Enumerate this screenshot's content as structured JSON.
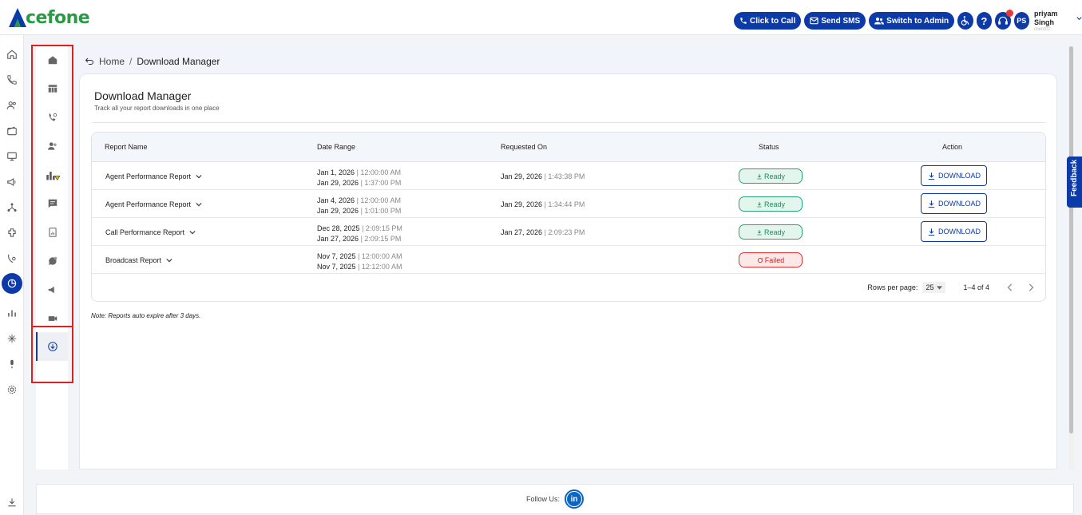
{
  "app": {
    "logo_text": "cefone",
    "brand_color": "#0c3aa8",
    "logo_color": "#2a9a45"
  },
  "topbar": {
    "click_to_call": "Click to Call",
    "send_sms": "Send SMS",
    "switch_admin": "Switch to Admin",
    "help": "?",
    "user_initials": "PS",
    "user_name": "priyam Singh",
    "user_sub": "client02"
  },
  "breadcrumb": {
    "home": "Home",
    "separator": "/",
    "current": "Download Manager"
  },
  "page": {
    "title": "Download Manager",
    "subtitle": "Track all your report downloads in one place",
    "note": "Note: Reports auto expire after 3 days."
  },
  "table": {
    "headers": [
      "Report Name",
      "Date Range",
      "Requested On",
      "Status",
      "Action"
    ],
    "rows": [
      {
        "name": "Agent Performance Report",
        "from_date": "Jan 1, 2026",
        "from_time": "| 12:00:00 AM",
        "to_date": "Jan 29, 2026",
        "to_time": "| 1:37:00 PM",
        "req_date": "Jan 29, 2026",
        "req_time": "| 1:43:38 PM",
        "status": "Ready",
        "action": "DOWNLOAD"
      },
      {
        "name": "Agent Performance Report",
        "from_date": "Jan 4, 2026",
        "from_time": "| 12:00:00 AM",
        "to_date": "Jan 29, 2026",
        "to_time": "| 1:01:00 PM",
        "req_date": "Jan 29, 2026",
        "req_time": "| 1:34:44 PM",
        "status": "Ready",
        "action": "DOWNLOAD"
      },
      {
        "name": "Call Performance Report",
        "from_date": "Dec 28, 2025",
        "from_time": "| 2:09:15 PM",
        "to_date": "Jan 27, 2026",
        "to_time": "| 2:09:15 PM",
        "req_date": "Jan 27, 2026",
        "req_time": "| 2:09:23 PM",
        "status": "Ready",
        "action": "DOWNLOAD"
      },
      {
        "name": "Broadcast Report",
        "from_date": "Nov 7, 2025",
        "from_time": "| 12:00:00 AM",
        "to_date": "Nov 7, 2025",
        "to_time": "| 12:12:00 AM",
        "status": "Failed"
      }
    ],
    "pager": {
      "rows_per_page_label": "Rows per page:",
      "rows_per_page_value": "25",
      "range": "1–4 of 4"
    }
  },
  "feedback": "Feedback",
  "footer": {
    "follow_label": "Follow Us:",
    "linkedin": "in"
  },
  "colors": {
    "ready": "#1f8a63",
    "failed": "#c62828",
    "highlight_box": "#e02020"
  }
}
